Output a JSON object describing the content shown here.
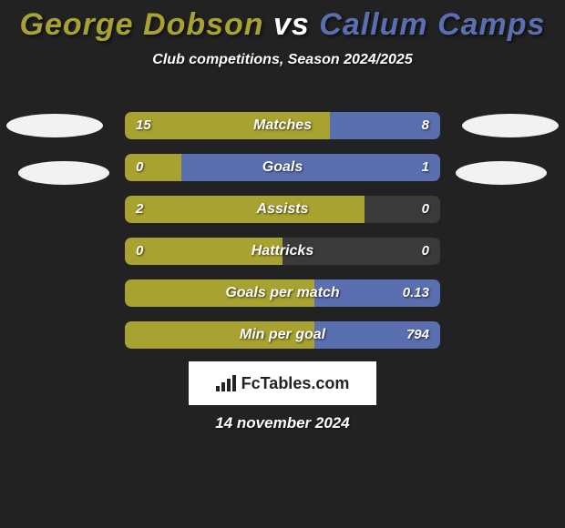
{
  "title": {
    "player1": "George Dobson",
    "vs": " vs ",
    "player2": "Callum Camps",
    "color1": "#a8a230",
    "color2": "#5a6fb0"
  },
  "subtitle": "Club competitions, Season 2024/2025",
  "colors": {
    "left_fill": "#a8a230",
    "right_fill": "#5a6fb0",
    "background": "#222222"
  },
  "metrics": [
    {
      "label": "Matches",
      "left_val": "15",
      "right_val": "8",
      "left_pct": 65,
      "right_pct": 35
    },
    {
      "label": "Goals",
      "left_val": "0",
      "right_val": "1",
      "left_pct": 18,
      "right_pct": 82
    },
    {
      "label": "Assists",
      "left_val": "2",
      "right_val": "0",
      "left_pct": 76,
      "right_pct": 0
    },
    {
      "label": "Hattricks",
      "left_val": "0",
      "right_val": "0",
      "left_pct": 50,
      "right_pct": 0
    },
    {
      "label": "Goals per match",
      "left_val": "",
      "right_val": "0.13",
      "left_pct": 60,
      "right_pct": 40
    },
    {
      "label": "Min per goal",
      "left_val": "",
      "right_val": "794",
      "left_pct": 60,
      "right_pct": 40
    }
  ],
  "logo_text": "FcTables.com",
  "date": "14 november 2024"
}
